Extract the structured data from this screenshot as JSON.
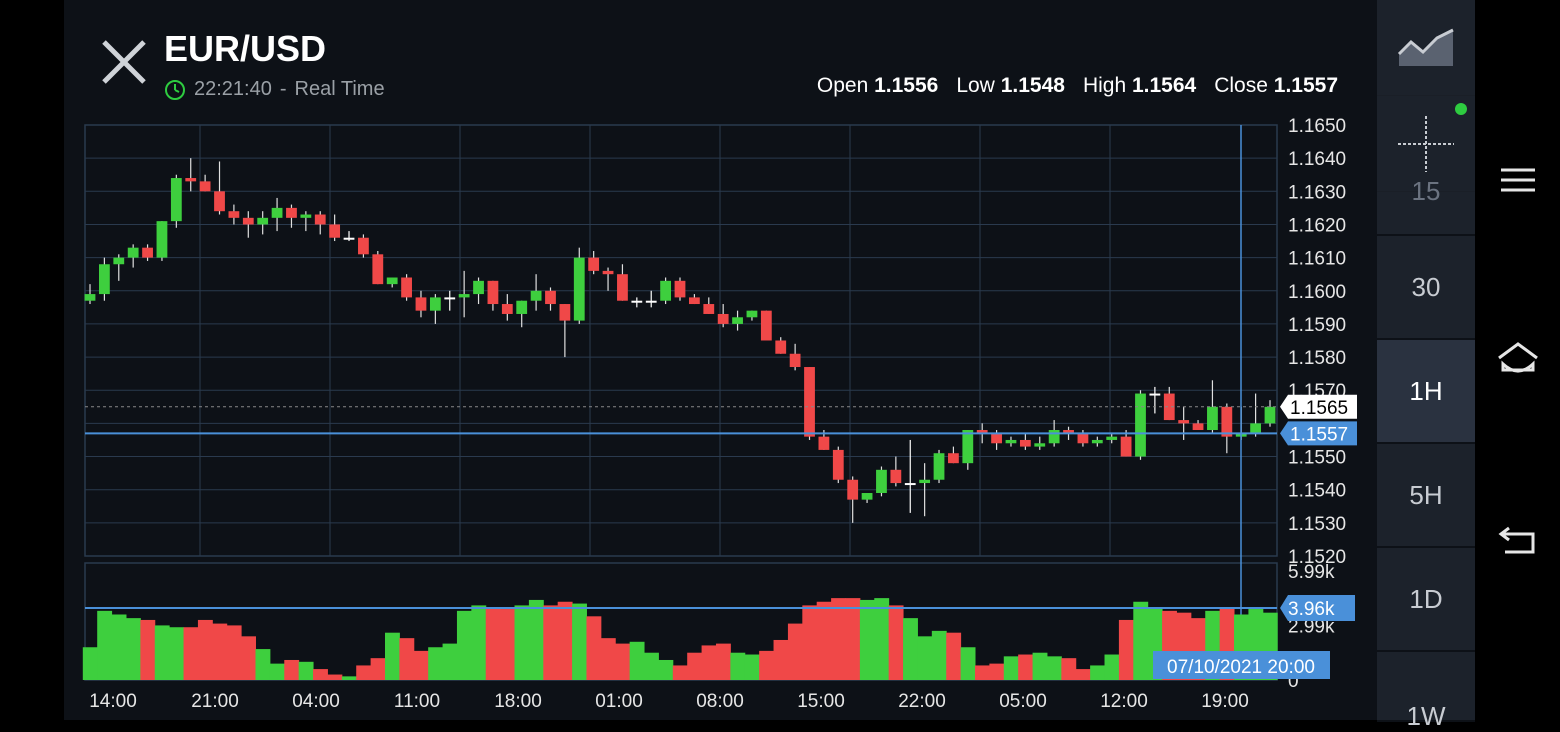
{
  "header": {
    "title": "EUR/USD",
    "time": "22:21:40",
    "separator": "-",
    "mode": "Real Time"
  },
  "ohlc": {
    "open_label": "Open",
    "open": "1.1556",
    "low_label": "Low",
    "low": "1.1548",
    "high_label": "High",
    "high": "1.1564",
    "close_label": "Close",
    "close": "1.1557"
  },
  "timeframes": {
    "partial_top": "15",
    "items": [
      "30",
      "1H",
      "5H",
      "1D",
      "1W"
    ],
    "active": "1H"
  },
  "colors": {
    "up": "#3ecf3e",
    "down": "#f04848",
    "crosshair": "#4a90d9",
    "grid": "#2a3a4e",
    "background": "#0d1117"
  },
  "chart_data": {
    "type": "candlestick",
    "symbol": "EUR/USD",
    "ylim": [
      1.152,
      1.165
    ],
    "y_ticks": [
      "1.1650",
      "1.1640",
      "1.1630",
      "1.1620",
      "1.1610",
      "1.1600",
      "1.1590",
      "1.1580",
      "1.1570",
      "1.1565",
      "1.1557",
      "1.1550",
      "1.1540",
      "1.1530",
      "1.1520"
    ],
    "last_price": "1.1565",
    "crosshair_price": "1.1557",
    "x_ticks": [
      "14:00",
      "21:00",
      "04:00",
      "11:00",
      "18:00",
      "01:00",
      "08:00",
      "15:00",
      "22:00",
      "05:00",
      "12:00",
      "19:00"
    ],
    "crosshair_time": "07/10/2021 20:00",
    "candles": [
      [
        1.1597,
        1.1602,
        1.1596,
        1.1599
      ],
      [
        1.1599,
        1.161,
        1.1597,
        1.1608
      ],
      [
        1.1608,
        1.1611,
        1.1603,
        1.161
      ],
      [
        1.161,
        1.1614,
        1.1607,
        1.1613
      ],
      [
        1.1613,
        1.1614,
        1.1609,
        1.161
      ],
      [
        1.161,
        1.1621,
        1.1609,
        1.1621
      ],
      [
        1.1621,
        1.1635,
        1.1619,
        1.1634
      ],
      [
        1.1634,
        1.164,
        1.163,
        1.1633
      ],
      [
        1.1633,
        1.1635,
        1.163,
        1.163
      ],
      [
        1.163,
        1.1639,
        1.1623,
        1.1624
      ],
      [
        1.1624,
        1.1626,
        1.162,
        1.1622
      ],
      [
        1.1622,
        1.1624,
        1.1616,
        1.162
      ],
      [
        1.162,
        1.1624,
        1.1617,
        1.1622
      ],
      [
        1.1622,
        1.1628,
        1.1618,
        1.1625
      ],
      [
        1.1625,
        1.1626,
        1.1619,
        1.1622
      ],
      [
        1.1622,
        1.1624,
        1.1618,
        1.1623
      ],
      [
        1.1623,
        1.1624,
        1.1617,
        1.162
      ],
      [
        1.162,
        1.1623,
        1.1615,
        1.1616
      ],
      [
        1.1616,
        1.1618,
        1.1615,
        1.1616
      ],
      [
        1.1616,
        1.1617,
        1.161,
        1.1611
      ],
      [
        1.1611,
        1.1612,
        1.1602,
        1.1602
      ],
      [
        1.1602,
        1.1604,
        1.1601,
        1.1604
      ],
      [
        1.1604,
        1.1605,
        1.1597,
        1.1598
      ],
      [
        1.1598,
        1.16,
        1.1592,
        1.1594
      ],
      [
        1.1594,
        1.1599,
        1.159,
        1.1598
      ],
      [
        1.1598,
        1.16,
        1.1594,
        1.1598
      ],
      [
        1.1598,
        1.1606,
        1.1592,
        1.1599
      ],
      [
        1.1599,
        1.1604,
        1.1596,
        1.1603
      ],
      [
        1.1603,
        1.1603,
        1.1594,
        1.1596
      ],
      [
        1.1596,
        1.1599,
        1.1591,
        1.1593
      ],
      [
        1.1593,
        1.1597,
        1.1589,
        1.1597
      ],
      [
        1.1597,
        1.1605,
        1.1594,
        1.16
      ],
      [
        1.16,
        1.1601,
        1.1594,
        1.1596
      ],
      [
        1.1596,
        1.1596,
        1.158,
        1.1591
      ],
      [
        1.1591,
        1.1613,
        1.159,
        1.161
      ],
      [
        1.161,
        1.1612,
        1.1605,
        1.1606
      ],
      [
        1.1606,
        1.1607,
        1.16,
        1.1605
      ],
      [
        1.1605,
        1.1608,
        1.1597,
        1.1597
      ],
      [
        1.1597,
        1.1598,
        1.1595,
        1.1597
      ],
      [
        1.1597,
        1.16,
        1.1595,
        1.1597
      ],
      [
        1.1597,
        1.1604,
        1.1596,
        1.1603
      ],
      [
        1.1603,
        1.1604,
        1.1597,
        1.1598
      ],
      [
        1.1598,
        1.1599,
        1.1596,
        1.1596
      ],
      [
        1.1596,
        1.1598,
        1.1593,
        1.1593
      ],
      [
        1.1593,
        1.1596,
        1.1589,
        1.159
      ],
      [
        1.159,
        1.1594,
        1.1588,
        1.1592
      ],
      [
        1.1592,
        1.1594,
        1.1591,
        1.1594
      ],
      [
        1.1594,
        1.1594,
        1.1585,
        1.1585
      ],
      [
        1.1585,
        1.1586,
        1.1581,
        1.1581
      ],
      [
        1.1581,
        1.1584,
        1.1576,
        1.1577
      ],
      [
        1.1577,
        1.1577,
        1.1555,
        1.1556
      ],
      [
        1.1556,
        1.1558,
        1.1552,
        1.1552
      ],
      [
        1.1552,
        1.1553,
        1.1542,
        1.1543
      ],
      [
        1.1543,
        1.1544,
        1.153,
        1.1537
      ],
      [
        1.1537,
        1.1539,
        1.1536,
        1.1539
      ],
      [
        1.1539,
        1.1547,
        1.1538,
        1.1546
      ],
      [
        1.1546,
        1.155,
        1.1541,
        1.1542
      ],
      [
        1.1542,
        1.1555,
        1.1533,
        1.1542
      ],
      [
        1.1542,
        1.1548,
        1.1532,
        1.1543
      ],
      [
        1.1543,
        1.1552,
        1.1542,
        1.1551
      ],
      [
        1.1551,
        1.1553,
        1.1548,
        1.1548
      ],
      [
        1.1548,
        1.1558,
        1.1546,
        1.1558
      ],
      [
        1.1558,
        1.156,
        1.1554,
        1.1557
      ],
      [
        1.1557,
        1.1558,
        1.1552,
        1.1554
      ],
      [
        1.1554,
        1.1556,
        1.1553,
        1.1555
      ],
      [
        1.1555,
        1.1557,
        1.1552,
        1.1553
      ],
      [
        1.1553,
        1.1556,
        1.1552,
        1.1554
      ],
      [
        1.1554,
        1.1561,
        1.1553,
        1.1558
      ],
      [
        1.1558,
        1.1559,
        1.1555,
        1.1557
      ],
      [
        1.1557,
        1.1558,
        1.1553,
        1.1554
      ],
      [
        1.1554,
        1.1556,
        1.1553,
        1.1555
      ],
      [
        1.1555,
        1.1557,
        1.1554,
        1.1556
      ],
      [
        1.1556,
        1.1558,
        1.155,
        1.155
      ],
      [
        1.155,
        1.157,
        1.1549,
        1.1569
      ],
      [
        1.1569,
        1.1571,
        1.1563,
        1.1569
      ],
      [
        1.1569,
        1.1571,
        1.1561,
        1.1561
      ],
      [
        1.1561,
        1.1565,
        1.1555,
        1.156
      ],
      [
        1.156,
        1.1561,
        1.1558,
        1.1558
      ],
      [
        1.1558,
        1.1573,
        1.1557,
        1.1565
      ],
      [
        1.1565,
        1.1566,
        1.1551,
        1.1556
      ],
      [
        1.1556,
        1.1565,
        1.1555,
        1.1557
      ],
      [
        1.1557,
        1.1569,
        1.1556,
        1.156
      ],
      [
        1.156,
        1.1567,
        1.1559,
        1.1565
      ]
    ],
    "volume_ticks": [
      "5.99k",
      "3.96k",
      "2.99k",
      "0"
    ],
    "volume_max": 5.99,
    "volumes": [
      1.8,
      3.8,
      3.6,
      3.4,
      3.3,
      3.0,
      2.9,
      2.9,
      3.3,
      3.1,
      3.0,
      2.4,
      1.7,
      0.9,
      1.1,
      1.0,
      0.6,
      0.3,
      0.2,
      0.8,
      1.2,
      2.6,
      2.3,
      1.6,
      1.8,
      2.0,
      3.8,
      4.1,
      4.0,
      3.9,
      4.1,
      4.4,
      4.1,
      4.3,
      4.2,
      3.5,
      2.3,
      2.0,
      2.1,
      1.5,
      1.1,
      0.8,
      1.5,
      1.9,
      2.0,
      1.5,
      1.4,
      1.6,
      2.2,
      3.1,
      4.1,
      4.3,
      4.5,
      4.5,
      4.4,
      4.5,
      4.1,
      3.4,
      2.4,
      2.7,
      2.6,
      1.8,
      0.8,
      0.9,
      1.3,
      1.4,
      1.5,
      1.3,
      1.2,
      0.6,
      0.8,
      1.4,
      3.3,
      4.3,
      4.0,
      3.8,
      3.7,
      3.4,
      3.8,
      4.0,
      3.6,
      3.9,
      3.7
    ]
  }
}
